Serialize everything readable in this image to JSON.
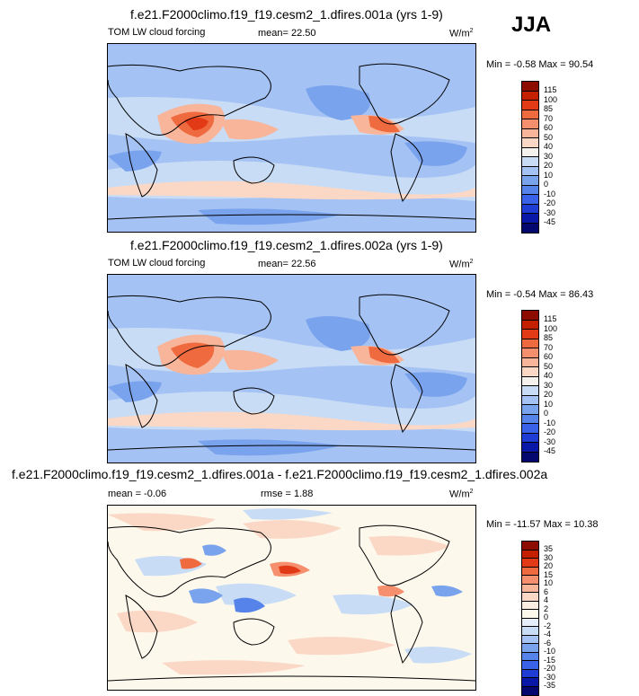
{
  "season": "JJA",
  "units": "W/m",
  "units_sup": "2",
  "panels": [
    {
      "title": "f.e21.F2000climo.f19_f19.cesm2_1.dfires.001a (yrs 1-9)",
      "var_label": "TOM LW cloud forcing",
      "stat": "mean=  22.50",
      "minmax": "Min =  -0.58 Max =  90.54",
      "levels": [
        "115",
        "100",
        "85",
        "70",
        "60",
        "50",
        "40",
        "30",
        "20",
        "10",
        "0",
        "-10",
        "-20",
        "-30",
        "-45"
      ],
      "colors": [
        "#8c0c00",
        "#c42000",
        "#e23a16",
        "#f06a40",
        "#f58f6e",
        "#f8b59a",
        "#fbd8c6",
        "#f5f1ec",
        "#c8dcf5",
        "#a4c2f4",
        "#7aa3ee",
        "#5683ea",
        "#3a62e8",
        "#1f3dd4",
        "#0a18a8",
        "#04086e"
      ]
    },
    {
      "title": "f.e21.F2000climo.f19_f19.cesm2_1.dfires.002a (yrs 1-9)",
      "var_label": "TOM LW cloud forcing",
      "stat": "mean=  22.56",
      "minmax": "Min =  -0.54 Max =  86.43",
      "levels": [
        "115",
        "100",
        "85",
        "70",
        "60",
        "50",
        "40",
        "30",
        "20",
        "10",
        "0",
        "-10",
        "-20",
        "-30",
        "-45"
      ],
      "colors": [
        "#8c0c00",
        "#c42000",
        "#e23a16",
        "#f06a40",
        "#f58f6e",
        "#f8b59a",
        "#fbd8c6",
        "#f5f1ec",
        "#c8dcf5",
        "#a4c2f4",
        "#7aa3ee",
        "#5683ea",
        "#3a62e8",
        "#1f3dd4",
        "#0a18a8",
        "#04086e"
      ]
    },
    {
      "title": "f.e21.F2000climo.f19_f19.cesm2_1.dfires.001a - f.e21.F2000climo.f19_f19.cesm2_1.dfires.002a",
      "var_label": "mean =  -0.06",
      "stat": "rmse =  1.88",
      "minmax": "Min = -11.57 Max =  10.38",
      "levels": [
        "35",
        "30",
        "20",
        "15",
        "10",
        "6",
        "4",
        "2",
        "0",
        "-2",
        "-4",
        "-6",
        "-10",
        "-15",
        "-20",
        "-30",
        "-35"
      ],
      "colors": [
        "#8c0c00",
        "#c42000",
        "#e23a16",
        "#f06a40",
        "#f58f6e",
        "#f8b59a",
        "#fbd8c6",
        "#fdeee4",
        "#fdf8ec",
        "#e6eefc",
        "#c8dcf5",
        "#a4c2f4",
        "#7aa3ee",
        "#5683ea",
        "#3a62e8",
        "#1f3dd4",
        "#0a18a8",
        "#04086e"
      ]
    }
  ]
}
